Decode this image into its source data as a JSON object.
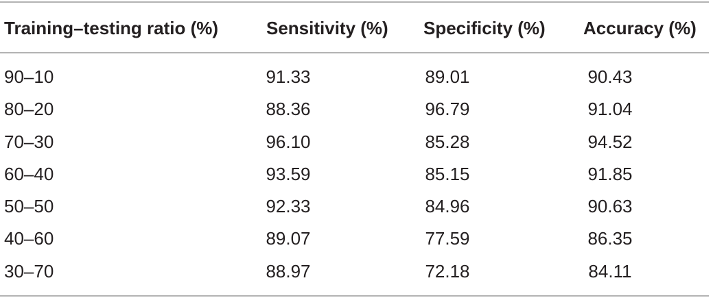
{
  "table": {
    "headers": [
      "Training–testing ratio (%)",
      "Sensitivity (%)",
      "Specificity (%)",
      "Accuracy (%)"
    ],
    "rows": [
      [
        "90–10",
        "91.33",
        "89.01",
        "90.43"
      ],
      [
        "80–20",
        "88.36",
        "96.79",
        "91.04"
      ],
      [
        "70–30",
        "96.10",
        "85.28",
        "94.52"
      ],
      [
        "60–40",
        "93.59",
        "85.15",
        "91.85"
      ],
      [
        "50–50",
        "92.33",
        "84.96",
        "90.63"
      ],
      [
        "40–60",
        "89.07",
        "77.59",
        "86.35"
      ],
      [
        "30–70",
        "88.97",
        "72.18",
        "84.11"
      ]
    ]
  }
}
